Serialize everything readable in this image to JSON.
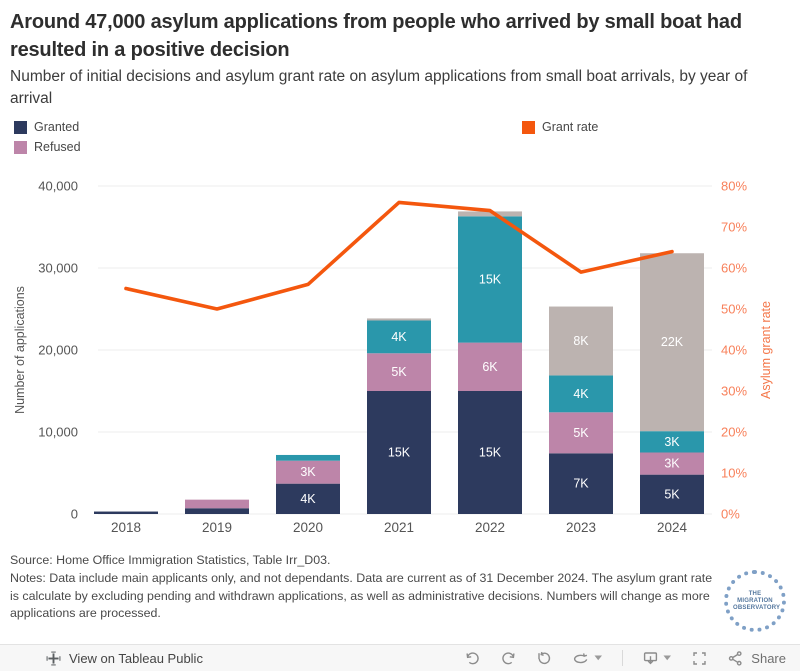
{
  "header": {
    "title": "Around 47,000 asylum applications from people who arrived by small boat had resulted in a positive decision",
    "subtitle": "Number of initial decisions and asylum grant rate on asylum applications from small boat arrivals, by year of arrival"
  },
  "legend": {
    "bars": [
      {
        "label": "Granted",
        "color": "#2d3a5e"
      },
      {
        "label": "Refused",
        "color": "#bd85a9"
      }
    ],
    "line": {
      "label": "Grant rate",
      "color": "#f4570e"
    }
  },
  "chart_data": {
    "type": "bar",
    "subtype": "stacked-bar-with-line-dual-axis",
    "categories": [
      "2018",
      "2019",
      "2020",
      "2021",
      "2022",
      "2023",
      "2024"
    ],
    "series": [
      {
        "name": "Granted",
        "color": "#2d3a5e",
        "values": [
          300,
          700,
          3700,
          15000,
          15000,
          7400,
          4800
        ],
        "labels": [
          "",
          "",
          "4K",
          "15K",
          "15K",
          "7K",
          "5K"
        ]
      },
      {
        "name": "Refused",
        "color": "#bd85a9",
        "values": [
          0,
          1050,
          2800,
          4600,
          5900,
          5000,
          2700
        ],
        "labels": [
          "",
          "",
          "3K",
          "5K",
          "6K",
          "5K",
          "3K"
        ]
      },
      {
        "name": "",
        "id": "teal-unlabelled",
        "color": "#2a97ab",
        "values": [
          0,
          0,
          700,
          4000,
          15400,
          4500,
          2600
        ],
        "labels": [
          "",
          "",
          "",
          "4K",
          "15K",
          "4K",
          "3K"
        ]
      },
      {
        "name": "",
        "id": "grey-unlabelled",
        "color": "#bcb3b0",
        "values": [
          0,
          0,
          0,
          250,
          600,
          8400,
          21700
        ],
        "labels": [
          "",
          "",
          "",
          "",
          "",
          "8K",
          "22K"
        ]
      }
    ],
    "line_series": {
      "name": "Grant rate",
      "color": "#f4570e",
      "values_pct": [
        55,
        50,
        56,
        76,
        74,
        59,
        64
      ]
    },
    "left_axis": {
      "title": "Number of applications",
      "min": 0,
      "max": 40000,
      "tick_values": [
        40000,
        30000,
        20000,
        10000,
        0
      ],
      "tick_labels": [
        "40,000",
        "30,000",
        "20,000",
        "10,000",
        "0"
      ],
      "tick_color": "#555555"
    },
    "right_axis": {
      "title": "Asylum grant rate",
      "min_pct": 0,
      "max_pct": 80,
      "tick_values": [
        80,
        70,
        60,
        50,
        40,
        30,
        20,
        10,
        0
      ],
      "tick_labels": [
        "80%",
        "70%",
        "60%",
        "50%",
        "40%",
        "30%",
        "20%",
        "10%",
        "0%"
      ],
      "tick_color": "#f8815b",
      "title_color": "#f4774a"
    },
    "grid": true,
    "bar_label_color": "#ffffff"
  },
  "footer": {
    "source": "Source: Home Office Immigration Statistics, Table Irr_D03.",
    "notes": "Notes: Data include main applicants only, and not dependants. Data are current as of 31 December 2024. The asylum grant rate is calculate by excluding pending and withdrawn applications, as well as administrative decisions. Numbers will change as more applications are processed.",
    "logo_text": "THE MIGRATION OBSERVATORY"
  },
  "toolbar": {
    "view_label": "View on Tableau Public",
    "share_label": "Share",
    "icons": [
      "tableau-logo",
      "undo",
      "redo",
      "reset",
      "refresh",
      "dropdown",
      "separator",
      "download",
      "fullscreen",
      "share"
    ]
  }
}
